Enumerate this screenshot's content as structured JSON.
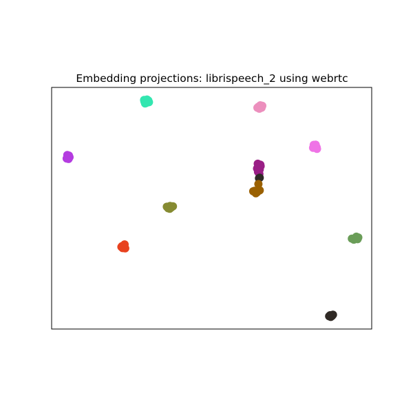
{
  "chart_data": {
    "type": "scatter",
    "title": "Embedding projections: librispeech_2 using webrtc",
    "xlabel": "",
    "ylabel": "",
    "xticks": "hidden",
    "yticks": "hidden",
    "grid": false,
    "legend": "none",
    "xlim": [
      0,
      100
    ],
    "ylim": [
      0,
      100
    ],
    "series": [
      {
        "color": "#33e6b0",
        "points": [
          [
            29.0,
            94.2
          ],
          [
            30.2,
            94.6
          ],
          [
            29.6,
            93.6
          ],
          [
            28.9,
            94.8
          ],
          [
            30.4,
            93.9
          ],
          [
            29.8,
            95.0
          ],
          [
            29.2,
            93.4
          ]
        ]
      },
      {
        "color": "#ec8fbd",
        "points": [
          [
            64.6,
            92.0
          ],
          [
            65.6,
            91.6
          ],
          [
            64.9,
            91.2
          ],
          [
            65.8,
            92.4
          ],
          [
            64.3,
            91.6
          ],
          [
            65.2,
            92.6
          ]
        ]
      },
      {
        "color": "#ef74e6",
        "points": [
          [
            82.0,
            75.8
          ],
          [
            82.8,
            75.2
          ],
          [
            81.7,
            75.0
          ],
          [
            82.5,
            76.3
          ],
          [
            82.9,
            74.6
          ],
          [
            81.9,
            76.2
          ]
        ]
      },
      {
        "color": "#b43ce0",
        "points": [
          [
            5.0,
            71.2
          ],
          [
            5.4,
            71.8
          ],
          [
            4.7,
            70.6
          ],
          [
            5.3,
            70.4
          ],
          [
            5.6,
            71.1
          ],
          [
            4.9,
            72.0
          ]
        ]
      },
      {
        "color": "#9a1f86",
        "points": [
          [
            64.4,
            68.4
          ],
          [
            65.2,
            68.0
          ],
          [
            64.6,
            67.0
          ],
          [
            65.0,
            66.0
          ],
          [
            64.5,
            65.0
          ],
          [
            64.9,
            64.2
          ],
          [
            65.3,
            67.4
          ],
          [
            64.2,
            66.4
          ]
        ]
      },
      {
        "color": "#2f2b27",
        "points": [
          [
            64.8,
            62.4
          ],
          [
            65.0,
            62.6
          ]
        ]
      },
      {
        "color": "#9a6000",
        "points": [
          [
            64.6,
            60.0
          ],
          [
            63.4,
            57.2
          ],
          [
            64.2,
            56.6
          ],
          [
            65.0,
            57.4
          ],
          [
            63.8,
            56.2
          ],
          [
            64.6,
            57.8
          ],
          [
            63.0,
            57.0
          ]
        ]
      },
      {
        "color": "#868b32",
        "points": [
          [
            36.0,
            50.6
          ],
          [
            37.0,
            50.9
          ],
          [
            37.9,
            50.8
          ],
          [
            36.4,
            50.0
          ],
          [
            37.4,
            50.3
          ],
          [
            36.9,
            49.8
          ]
        ]
      },
      {
        "color": "#6a9d58",
        "points": [
          [
            94.8,
            37.6
          ],
          [
            95.6,
            37.2
          ],
          [
            93.8,
            37.4
          ],
          [
            94.4,
            37.0
          ],
          [
            95.2,
            38.2
          ],
          [
            95.8,
            37.9
          ]
        ]
      },
      {
        "color": "#e8421f",
        "points": [
          [
            22.0,
            34.3
          ],
          [
            22.6,
            34.6
          ],
          [
            22.2,
            33.5
          ],
          [
            23.0,
            33.4
          ],
          [
            21.8,
            34.0
          ],
          [
            22.8,
            35.0
          ]
        ]
      },
      {
        "color": "#302a25",
        "points": [
          [
            87.0,
            5.7
          ],
          [
            87.6,
            5.4
          ],
          [
            87.2,
            5.0
          ],
          [
            86.7,
            5.3
          ],
          [
            87.9,
            5.9
          ]
        ]
      }
    ]
  }
}
